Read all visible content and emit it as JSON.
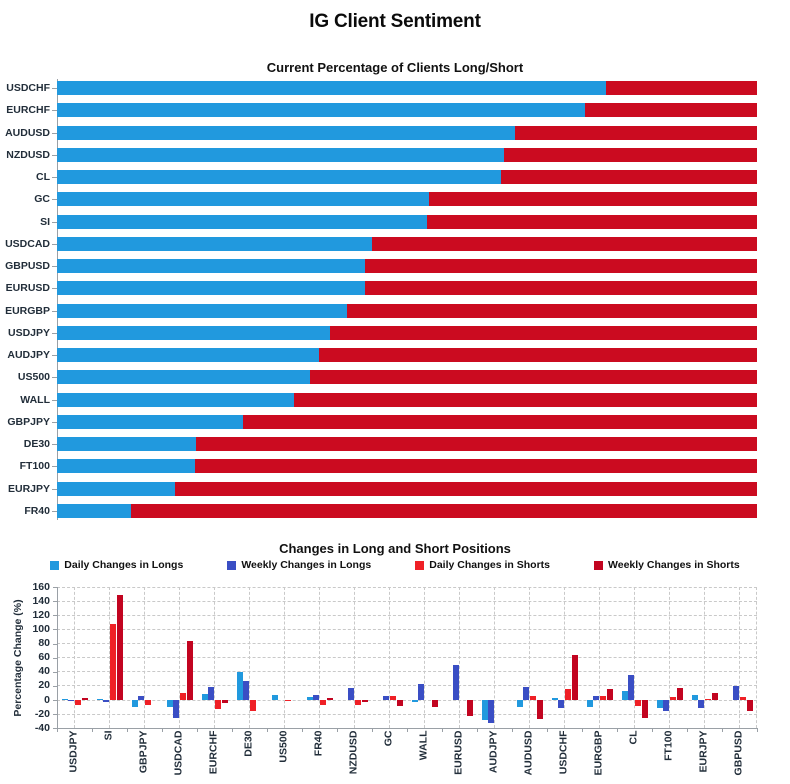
{
  "header": {
    "title": "IG Client Sentiment"
  },
  "colors": {
    "long_blue": "#2199DE",
    "weekly_long_blue": "#3A4EC4",
    "short_red": "#CB0B20",
    "daily_short_red": "#EF2026",
    "weekly_short_red": "#C20420",
    "axis_gray": "#9aa0a6",
    "grid_gray": "#c9c9c9",
    "label_navy": "#222e3a"
  },
  "chart_data": [
    {
      "type": "bar",
      "orientation": "horizontal-stacked",
      "title": "Current Percentage of Clients Long/Short",
      "grid": false,
      "xlim": [
        0,
        100
      ],
      "categories": [
        "USDCHF",
        "EURCHF",
        "AUDUSD",
        "NZDUSD",
        "CL",
        "GC",
        "SI",
        "USDCAD",
        "GBPUSD",
        "EURUSD",
        "EURGBP",
        "USDJPY",
        "AUDJPY",
        "US500",
        "WALL",
        "GBPJPY",
        "DE30",
        "FT100",
        "EURJPY",
        "FR40"
      ],
      "series": [
        {
          "name": "Percent Long",
          "color_key": "long_blue",
          "values": [
            78.4,
            75.4,
            65.4,
            63.8,
            63.4,
            53.2,
            52.8,
            45.0,
            44.0,
            44.0,
            41.4,
            39.0,
            37.4,
            36.1,
            33.8,
            26.6,
            19.9,
            19.7,
            16.8,
            10.5
          ]
        },
        {
          "name": "Percent Short",
          "color_key": "short_red",
          "values": [
            21.6,
            24.6,
            34.6,
            36.2,
            36.6,
            46.8,
            47.2,
            55.0,
            56.0,
            56.0,
            58.6,
            61.0,
            62.6,
            63.9,
            66.2,
            73.4,
            80.1,
            80.3,
            83.2,
            89.5
          ]
        }
      ]
    },
    {
      "type": "bar",
      "orientation": "vertical-grouped",
      "title": "Changes in Long and Short Positions",
      "ylabel": "Percentage Change (%)",
      "ylim": [
        -40,
        160
      ],
      "yticks": [
        160,
        140,
        120,
        100,
        80,
        60,
        40,
        20,
        0,
        -20,
        -40
      ],
      "grid": true,
      "legend_position": "top",
      "categories": [
        "USDJPY",
        "SI",
        "GBPJPY",
        "USDCAD",
        "EURCHF",
        "DE30",
        "US500",
        "FR40",
        "NZDUSD",
        "GC",
        "WALL",
        "EURUSD",
        "AUDJPY",
        "AUDUSD",
        "USDCHF",
        "EURGBP",
        "CL",
        "FT100",
        "EURJPY",
        "GBPUSD"
      ],
      "series": [
        {
          "name": "Daily Changes in Longs",
          "color_key": "long_blue",
          "values": [
            2,
            2,
            -10,
            -10,
            8,
            40,
            7,
            4,
            0,
            0,
            -3,
            0,
            -28,
            -10,
            3,
            -10,
            13,
            -12,
            7,
            0
          ]
        },
        {
          "name": "Weekly Changes in Longs",
          "color_key": "weekly_long_blue",
          "values": [
            -1,
            -3,
            5,
            -25,
            18,
            27,
            0,
            7,
            17,
            5,
            22,
            50,
            -32,
            18,
            -12,
            5,
            35,
            -15,
            -12,
            20
          ]
        },
        {
          "name": "Daily Changes in Shorts",
          "color_key": "daily_short_red",
          "values": [
            -7,
            107,
            -7,
            10,
            -13,
            -15,
            -2,
            -7,
            -7,
            5,
            0,
            0,
            0,
            5,
            15,
            5,
            -8,
            4,
            2,
            4
          ]
        },
        {
          "name": "Weekly Changes in Shorts",
          "color_key": "weekly_short_red",
          "values": [
            3,
            148,
            0,
            84,
            -4,
            0,
            0,
            3,
            -3,
            -9,
            -10,
            -22,
            0,
            -27,
            64,
            16,
            -25,
            17,
            10,
            -15
          ]
        }
      ]
    }
  ]
}
